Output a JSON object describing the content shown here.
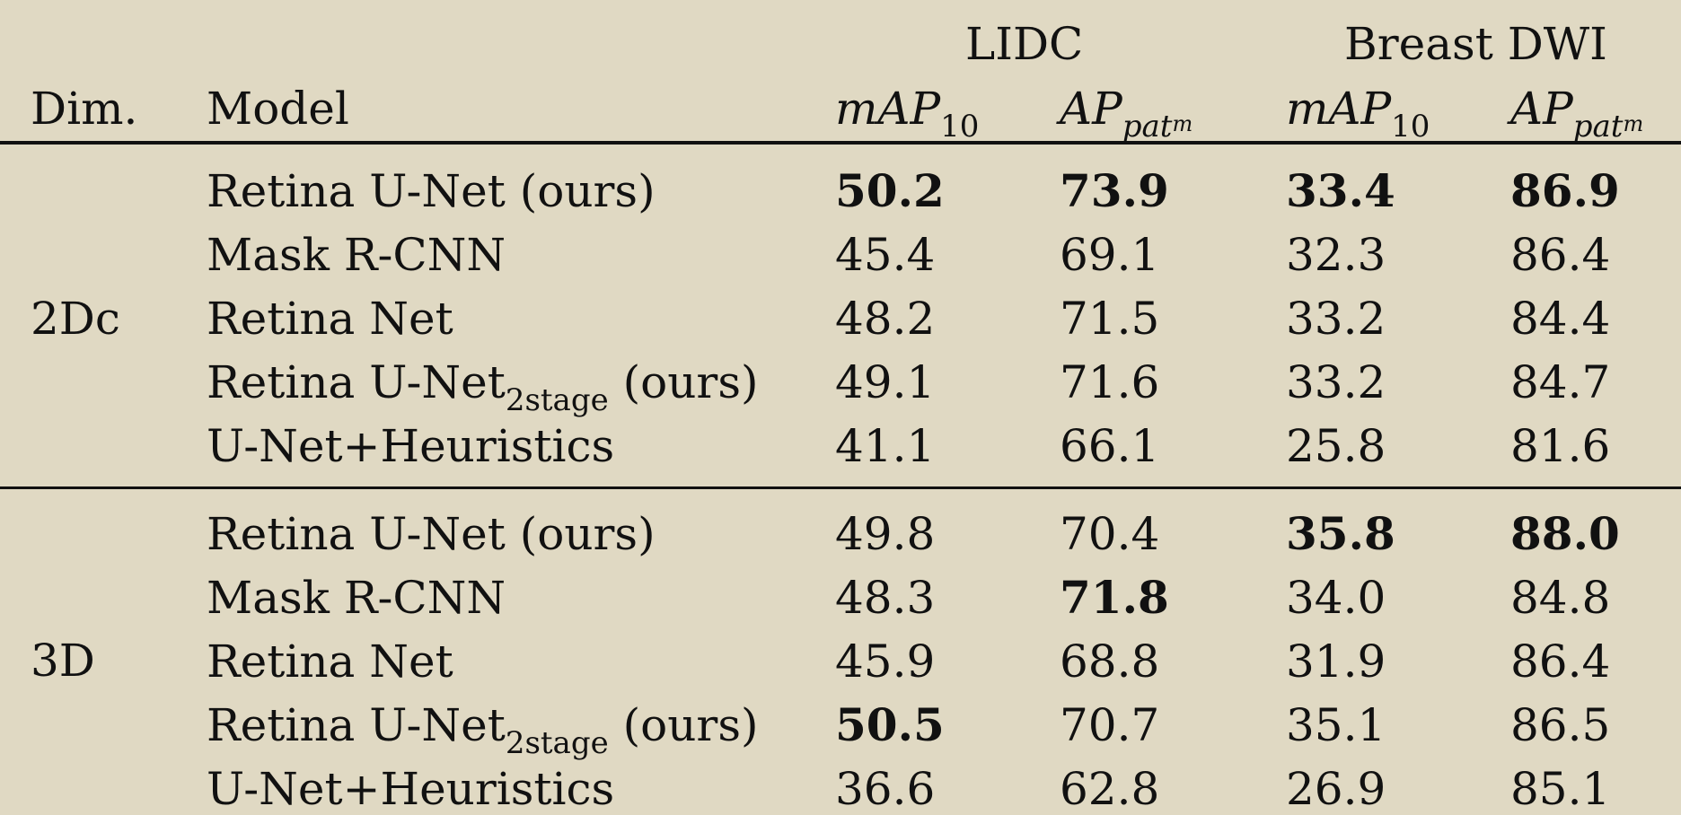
{
  "header": {
    "dim_label": "Dim.",
    "model_label": "Model",
    "groups": [
      {
        "name": "LIDC"
      },
      {
        "name": "Breast DWI"
      }
    ],
    "metric1": {
      "base": "mAP",
      "sub": "10"
    },
    "metric2": {
      "base": "AP",
      "sub": "pat",
      "subsub": "m"
    }
  },
  "sections": [
    {
      "dim": "2Dc",
      "rows": [
        {
          "model": "Retina U-Net (ours)",
          "model_sub": "",
          "model_suffix": "",
          "values": [
            "50.2",
            "73.9",
            "33.4",
            "86.9"
          ],
          "bold": [
            true,
            true,
            true,
            true
          ]
        },
        {
          "model": "Mask R-CNN",
          "model_sub": "",
          "model_suffix": "",
          "values": [
            "45.4",
            "69.1",
            "32.3",
            "86.4"
          ],
          "bold": [
            false,
            false,
            false,
            false
          ]
        },
        {
          "model": "Retina Net",
          "model_sub": "",
          "model_suffix": "",
          "values": [
            "48.2",
            "71.5",
            "33.2",
            "84.4"
          ],
          "bold": [
            false,
            false,
            false,
            false
          ]
        },
        {
          "model": "Retina U-Net",
          "model_sub": "2stage",
          "model_suffix": " (ours)",
          "values": [
            "49.1",
            "71.6",
            "33.2",
            "84.7"
          ],
          "bold": [
            false,
            false,
            false,
            false
          ]
        },
        {
          "model": "U-Net+Heuristics",
          "model_sub": "",
          "model_suffix": "",
          "values": [
            "41.1",
            "66.1",
            "25.8",
            "81.6"
          ],
          "bold": [
            false,
            false,
            false,
            false
          ]
        }
      ]
    },
    {
      "dim": "3D",
      "rows": [
        {
          "model": "Retina U-Net (ours)",
          "model_sub": "",
          "model_suffix": "",
          "values": [
            "49.8",
            "70.4",
            "35.8",
            "88.0"
          ],
          "bold": [
            false,
            false,
            true,
            true
          ]
        },
        {
          "model": "Mask R-CNN",
          "model_sub": "",
          "model_suffix": "",
          "values": [
            "48.3",
            "71.8",
            "34.0",
            "84.8"
          ],
          "bold": [
            false,
            true,
            false,
            false
          ]
        },
        {
          "model": "Retina Net",
          "model_sub": "",
          "model_suffix": "",
          "values": [
            "45.9",
            "68.8",
            "31.9",
            "86.4"
          ],
          "bold": [
            false,
            false,
            false,
            false
          ]
        },
        {
          "model": "Retina U-Net",
          "model_sub": "2stage",
          "model_suffix": " (ours)",
          "values": [
            "50.5",
            "70.7",
            "35.1",
            "86.5"
          ],
          "bold": [
            true,
            false,
            false,
            false
          ]
        },
        {
          "model": "U-Net+Heuristics",
          "model_sub": "",
          "model_suffix": "",
          "values": [
            "36.6",
            "62.8",
            "26.9",
            "85.1"
          ],
          "bold": [
            false,
            false,
            false,
            false
          ]
        }
      ]
    }
  ]
}
